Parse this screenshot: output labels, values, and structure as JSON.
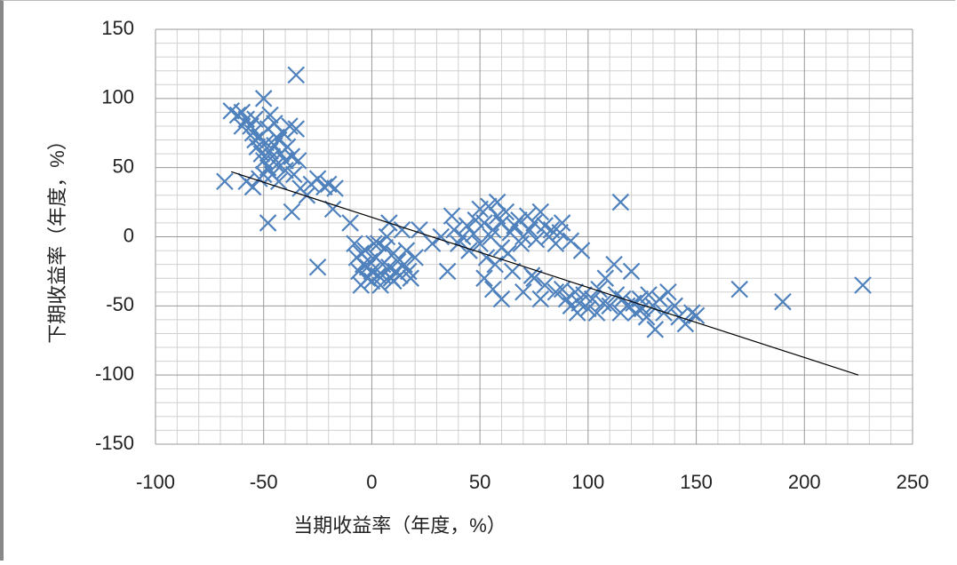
{
  "chart_data": {
    "type": "scatter",
    "x_label": "当期收益率（年度，%）",
    "y_label": "下期收益率（年度，%）",
    "xlim": [
      -100,
      250
    ],
    "ylim": [
      -150,
      150
    ],
    "xticks": [
      -100,
      -50,
      0,
      50,
      100,
      150,
      200,
      250
    ],
    "yticks": [
      -150,
      -100,
      -50,
      0,
      50,
      100,
      150
    ],
    "grid": true,
    "minor_grid": true,
    "color": "#4f81bd",
    "trendline": {
      "x": [
        -65,
        225
      ],
      "y": [
        47,
        -100
      ],
      "color": "#000000"
    },
    "x": [
      -65,
      -62,
      -60,
      -58,
      -56,
      -55,
      -54,
      -53,
      -52,
      -51,
      -50,
      -50,
      -49,
      -48,
      -48,
      -47,
      -46,
      -46,
      -45,
      -45,
      -44,
      -43,
      -43,
      -42,
      -41,
      -40,
      -40,
      -39,
      -38,
      -37,
      -36,
      -35,
      -35,
      -34,
      -33,
      -37,
      -48,
      -68,
      -58,
      -55,
      -52,
      -30,
      -28,
      -25,
      -22,
      -20,
      -17,
      -18,
      -25,
      -60,
      -54,
      -47,
      -44,
      -50,
      -10,
      -8,
      -7,
      -6,
      -5,
      -4,
      -3,
      -2,
      -1,
      0,
      1,
      2,
      3,
      4,
      5,
      6,
      7,
      8,
      9,
      10,
      11,
      12,
      13,
      14,
      15,
      16,
      17,
      18,
      20,
      22,
      -5,
      0,
      5,
      10,
      3,
      -2,
      28,
      35,
      32,
      8,
      37,
      38,
      40,
      42,
      44,
      45,
      47,
      48,
      50,
      50,
      52,
      53,
      54,
      55,
      56,
      57,
      58,
      58,
      60,
      60,
      62,
      63,
      64,
      65,
      66,
      68,
      69,
      70,
      72,
      73,
      74,
      75,
      76,
      78,
      80,
      82,
      83,
      85,
      87,
      88,
      92,
      97,
      52,
      56,
      60,
      70,
      75,
      78,
      80,
      85,
      88,
      90,
      92,
      94,
      95,
      96,
      98,
      100,
      102,
      104,
      105,
      107,
      108,
      110,
      112,
      113,
      115,
      116,
      118,
      120,
      121,
      122,
      124,
      125,
      127,
      128,
      130,
      131,
      133,
      135,
      137,
      140,
      142,
      145,
      148,
      150,
      115,
      170,
      190,
      227
    ],
    "y": [
      91,
      88,
      90,
      85,
      80,
      75,
      70,
      65,
      72,
      60,
      100,
      55,
      68,
      50,
      78,
      62,
      45,
      58,
      82,
      66,
      52,
      70,
      40,
      60,
      75,
      55,
      48,
      65,
      80,
      58,
      45,
      117,
      78,
      55,
      35,
      18,
      10,
      40,
      40,
      36,
      42,
      30,
      38,
      42,
      36,
      38,
      35,
      20,
      -22,
      80,
      85,
      88,
      72,
      45,
      10,
      -5,
      -15,
      -25,
      -35,
      -20,
      -10,
      -30,
      -18,
      -25,
      -5,
      -15,
      -28,
      -35,
      -20,
      -8,
      0,
      -22,
      -30,
      -12,
      -25,
      -18,
      -28,
      5,
      -20,
      -10,
      -25,
      -30,
      -15,
      5,
      -12,
      -32,
      -28,
      -32,
      -5,
      -22,
      -5,
      -25,
      0,
      10,
      15,
      5,
      -5,
      0,
      8,
      -10,
      2,
      12,
      20,
      -5,
      10,
      -15,
      22,
      0,
      5,
      -20,
      15,
      25,
      -8,
      10,
      18,
      -12,
      3,
      -25,
      8,
      12,
      -5,
      0,
      15,
      5,
      -28,
      10,
      -2,
      18,
      8,
      0,
      5,
      -5,
      3,
      10,
      -3,
      -10,
      -30,
      -38,
      -45,
      -40,
      -30,
      -45,
      -35,
      -40,
      -38,
      -45,
      -50,
      -40,
      -55,
      -48,
      -42,
      -52,
      -45,
      -55,
      -38,
      -48,
      -30,
      -50,
      -20,
      -42,
      -55,
      -45,
      -50,
      -25,
      -48,
      -55,
      -45,
      -52,
      -58,
      -42,
      -50,
      -67,
      -45,
      -55,
      -40,
      -50,
      -58,
      -63,
      -55,
      -57,
      25,
      -38,
      -47,
      -35
    ]
  }
}
